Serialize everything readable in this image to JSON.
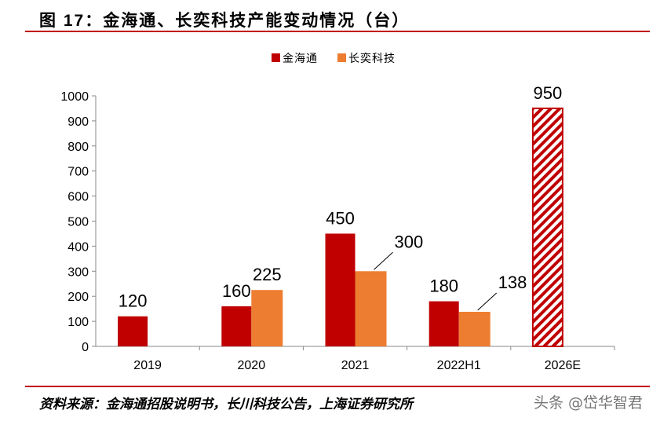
{
  "title": "图 17：金海通、长奕科技产能变动情况（台）",
  "source": "资料来源：金海通招股说明书，长川科技公告，上海证券研究所",
  "watermark": "头条 @岱华智君",
  "chart_data": {
    "type": "bar",
    "categories": [
      "2019",
      "2020",
      "2021",
      "2022H1",
      "2026E"
    ],
    "series": [
      {
        "name": "金海通",
        "color": "#c00000",
        "values": [
          120,
          160,
          450,
          180,
          950
        ],
        "hatched": [
          false,
          false,
          false,
          false,
          true
        ]
      },
      {
        "name": "长奕科技",
        "color": "#ed7d31",
        "values": [
          null,
          225,
          300,
          138,
          null
        ]
      }
    ],
    "ylim": [
      0,
      1000
    ],
    "yticks": [
      0,
      100,
      200,
      300,
      400,
      500,
      600,
      700,
      800,
      900,
      1000
    ],
    "legend": "top-right",
    "grid": false
  }
}
